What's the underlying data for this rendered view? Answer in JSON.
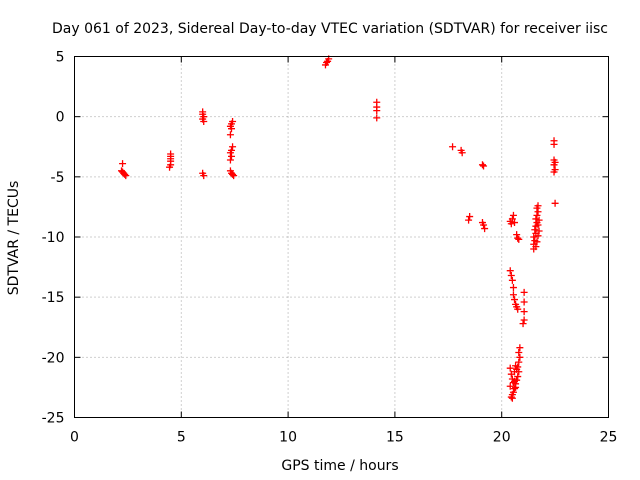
{
  "chart_data": {
    "type": "scatter",
    "title": "Day 061 of 2023, Sidereal Day-to-day VTEC variation (SDTVAR) for receiver iisc",
    "xlabel": "GPS time / hours",
    "ylabel": "SDTVAR / TECUs",
    "xlim": [
      0,
      25
    ],
    "ylim": [
      -25,
      5
    ],
    "xticks": [
      0,
      5,
      10,
      15,
      20,
      25
    ],
    "yticks": [
      -25,
      -20,
      -15,
      -10,
      -5,
      0,
      5
    ],
    "grid": true,
    "marker": "plus",
    "color": "#ff0000",
    "series": [
      {
        "name": "SDTVAR",
        "points": [
          [
            2.25,
            -3.9
          ],
          [
            2.2,
            -4.5
          ],
          [
            2.25,
            -4.6
          ],
          [
            2.3,
            -4.7
          ],
          [
            2.35,
            -4.8
          ],
          [
            2.4,
            -4.9
          ],
          [
            4.5,
            -3.1
          ],
          [
            4.5,
            -3.3
          ],
          [
            4.5,
            -3.5
          ],
          [
            4.5,
            -3.7
          ],
          [
            4.5,
            -4.0
          ],
          [
            4.45,
            -4.2
          ],
          [
            6.0,
            0.4
          ],
          [
            6.0,
            0.2
          ],
          [
            6.05,
            0.0
          ],
          [
            6.0,
            -0.2
          ],
          [
            6.05,
            -0.4
          ],
          [
            6.0,
            -4.7
          ],
          [
            6.05,
            -4.9
          ],
          [
            7.4,
            -0.4
          ],
          [
            7.35,
            -0.6
          ],
          [
            7.3,
            -0.8
          ],
          [
            7.35,
            -1.0
          ],
          [
            7.3,
            -1.5
          ],
          [
            7.4,
            -2.5
          ],
          [
            7.35,
            -2.8
          ],
          [
            7.3,
            -3.0
          ],
          [
            7.35,
            -3.3
          ],
          [
            7.3,
            -3.6
          ],
          [
            7.3,
            -4.5
          ],
          [
            7.35,
            -4.7
          ],
          [
            7.4,
            -4.8
          ],
          [
            7.45,
            -4.9
          ],
          [
            11.75,
            4.3
          ],
          [
            11.8,
            4.5
          ],
          [
            11.85,
            4.6
          ],
          [
            11.9,
            4.8
          ],
          [
            14.15,
            1.2
          ],
          [
            14.15,
            0.8
          ],
          [
            14.15,
            0.5
          ],
          [
            14.15,
            -0.1
          ],
          [
            17.7,
            -2.5
          ],
          [
            18.1,
            -2.8
          ],
          [
            18.15,
            -3.0
          ],
          [
            18.5,
            -8.3
          ],
          [
            18.45,
            -8.6
          ],
          [
            19.1,
            -4.0
          ],
          [
            19.15,
            -4.1
          ],
          [
            19.1,
            -8.8
          ],
          [
            19.15,
            -9.0
          ],
          [
            19.2,
            -9.3
          ],
          [
            20.4,
            -8.7
          ],
          [
            20.45,
            -8.9
          ],
          [
            20.5,
            -8.5
          ],
          [
            20.55,
            -8.2
          ],
          [
            20.6,
            -8.8
          ],
          [
            20.7,
            -9.8
          ],
          [
            20.75,
            -10.1
          ],
          [
            20.8,
            -10.2
          ],
          [
            20.4,
            -12.8
          ],
          [
            20.45,
            -13.2
          ],
          [
            20.5,
            -13.6
          ],
          [
            20.55,
            -14.2
          ],
          [
            20.55,
            -14.8
          ],
          [
            20.6,
            -15.2
          ],
          [
            20.65,
            -15.6
          ],
          [
            20.7,
            -15.8
          ],
          [
            20.75,
            -16.0
          ],
          [
            21.05,
            -14.6
          ],
          [
            21.05,
            -15.4
          ],
          [
            21.05,
            -16.2
          ],
          [
            21.05,
            -16.9
          ],
          [
            21.0,
            -17.2
          ],
          [
            20.85,
            -19.2
          ],
          [
            20.8,
            -19.6
          ],
          [
            20.85,
            -20.0
          ],
          [
            20.8,
            -20.4
          ],
          [
            20.75,
            -20.8
          ],
          [
            20.8,
            -21.2
          ],
          [
            20.75,
            -21.6
          ],
          [
            20.7,
            -21.9
          ],
          [
            20.65,
            -22.2
          ],
          [
            20.6,
            -22.6
          ],
          [
            20.55,
            -22.9
          ],
          [
            20.5,
            -23.1
          ],
          [
            20.45,
            -23.3
          ],
          [
            20.5,
            -23.4
          ],
          [
            20.4,
            -20.9
          ],
          [
            20.45,
            -21.4
          ],
          [
            20.5,
            -21.8
          ],
          [
            20.55,
            -22.1
          ],
          [
            20.4,
            -22.4
          ],
          [
            20.6,
            -21.2
          ],
          [
            20.65,
            -20.7
          ],
          [
            20.7,
            -21.0
          ],
          [
            20.6,
            -22.0
          ],
          [
            20.65,
            -22.5
          ],
          [
            21.5,
            -11.0
          ],
          [
            21.5,
            -10.6
          ],
          [
            21.55,
            -10.3
          ],
          [
            21.5,
            -10.0
          ],
          [
            21.6,
            -9.7
          ],
          [
            21.55,
            -9.4
          ],
          [
            21.6,
            -9.1
          ],
          [
            21.65,
            -8.8
          ],
          [
            21.6,
            -8.5
          ],
          [
            21.65,
            -8.2
          ],
          [
            21.7,
            -7.9
          ],
          [
            21.65,
            -7.6
          ],
          [
            21.7,
            -7.4
          ],
          [
            21.6,
            -10.8
          ],
          [
            21.65,
            -10.4
          ],
          [
            21.7,
            -9.9
          ],
          [
            21.75,
            -9.5
          ],
          [
            21.7,
            -9.0
          ],
          [
            21.75,
            -8.6
          ],
          [
            22.45,
            -2.0
          ],
          [
            22.45,
            -2.3
          ],
          [
            22.45,
            -3.6
          ],
          [
            22.5,
            -3.8
          ],
          [
            22.45,
            -4.0
          ],
          [
            22.5,
            -4.4
          ],
          [
            22.45,
            -4.6
          ],
          [
            22.5,
            -7.2
          ]
        ]
      }
    ]
  }
}
